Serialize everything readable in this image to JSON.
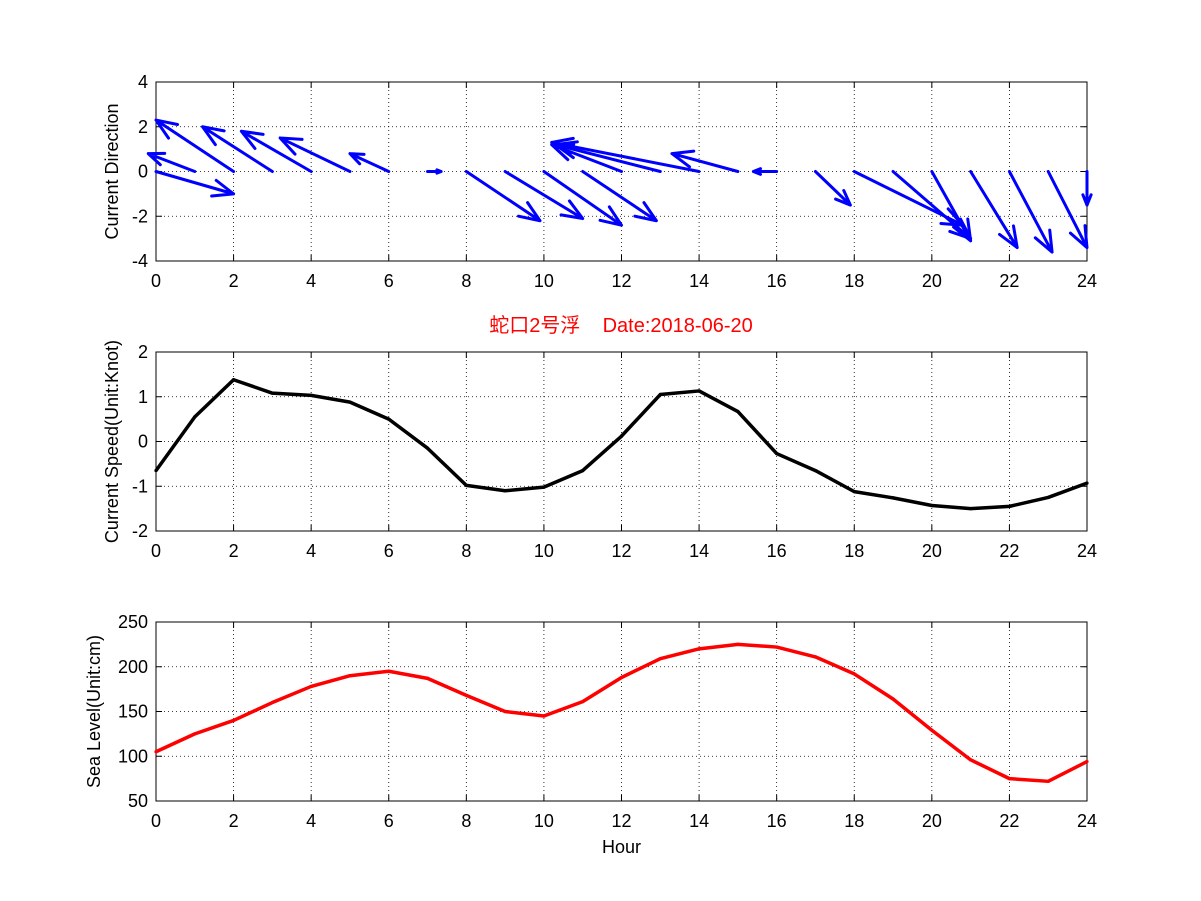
{
  "chart_data": [
    {
      "type": "quiver",
      "ylabel": "Current Direction",
      "xlabel": "",
      "xlim": [
        0,
        24
      ],
      "ylim": [
        -4,
        4
      ],
      "xticks": [
        0,
        2,
        4,
        6,
        8,
        10,
        12,
        14,
        16,
        18,
        20,
        22,
        24
      ],
      "yticks": [
        -4,
        -2,
        0,
        2,
        4
      ],
      "grid": true,
      "color": "#0000ff",
      "arrows": [
        {
          "x": 0,
          "u": 2.0,
          "v": -1.0
        },
        {
          "x": 1,
          "u": -1.2,
          "v": 0.8
        },
        {
          "x": 2,
          "u": -2.0,
          "v": 2.3
        },
        {
          "x": 3,
          "u": -1.8,
          "v": 2.0
        },
        {
          "x": 4,
          "u": -1.8,
          "v": 1.8
        },
        {
          "x": 5,
          "u": -1.8,
          "v": 1.5
        },
        {
          "x": 6,
          "u": -1.0,
          "v": 0.8
        },
        {
          "x": 7,
          "u": 0.35,
          "v": 0.0
        },
        {
          "x": 8,
          "u": 1.9,
          "v": -2.2
        },
        {
          "x": 9,
          "u": 2.0,
          "v": -2.1
        },
        {
          "x": 10,
          "u": 2.0,
          "v": -2.4
        },
        {
          "x": 11,
          "u": 1.9,
          "v": -2.2
        },
        {
          "x": 12,
          "u": -1.8,
          "v": 1.2
        },
        {
          "x": 13,
          "u": -2.7,
          "v": 1.2
        },
        {
          "x": 14,
          "u": -3.8,
          "v": 1.3
        },
        {
          "x": 15,
          "u": -1.7,
          "v": 0.8
        },
        {
          "x": 16,
          "u": -0.6,
          "v": 0.0
        },
        {
          "x": 17,
          "u": 0.9,
          "v": -1.5
        },
        {
          "x": 18,
          "u": 2.8,
          "v": -2.4
        },
        {
          "x": 19,
          "u": 2.0,
          "v": -3.0
        },
        {
          "x": 20,
          "u": 1.0,
          "v": -3.1
        },
        {
          "x": 21,
          "u": 1.2,
          "v": -3.4
        },
        {
          "x": 22,
          "u": 1.1,
          "v": -3.6
        },
        {
          "x": 23,
          "u": 1.0,
          "v": -3.4
        },
        {
          "x": 24,
          "u": 0.0,
          "v": -1.5
        }
      ]
    },
    {
      "type": "line",
      "title": "蛇口2号浮    Date:2018-06-20",
      "ylabel": "Current Speed(Unit:Knot)",
      "xlabel": "",
      "xlim": [
        0,
        24
      ],
      "ylim": [
        -2,
        2
      ],
      "xticks": [
        0,
        2,
        4,
        6,
        8,
        10,
        12,
        14,
        16,
        18,
        20,
        22,
        24
      ],
      "yticks": [
        -2,
        -1,
        0,
        1,
        2
      ],
      "grid": true,
      "color": "#000000",
      "x": [
        0,
        1,
        2,
        3,
        4,
        5,
        6,
        7,
        8,
        9,
        10,
        11,
        12,
        13,
        14,
        15,
        16,
        17,
        18,
        19,
        20,
        21,
        22,
        23,
        24
      ],
      "y": [
        -0.65,
        0.55,
        1.38,
        1.08,
        1.03,
        0.88,
        0.5,
        -0.15,
        -0.98,
        -1.1,
        -1.02,
        -0.65,
        0.12,
        1.05,
        1.13,
        0.67,
        -0.27,
        -0.65,
        -1.12,
        -1.26,
        -1.43,
        -1.5,
        -1.45,
        -1.25,
        -0.93
      ]
    },
    {
      "type": "line",
      "ylabel": "Sea Level(Unit:cm)",
      "xlabel": "Hour",
      "xlim": [
        0,
        24
      ],
      "ylim": [
        50,
        250
      ],
      "xticks": [
        0,
        2,
        4,
        6,
        8,
        10,
        12,
        14,
        16,
        18,
        20,
        22,
        24
      ],
      "yticks": [
        50,
        100,
        150,
        200,
        250
      ],
      "grid": true,
      "color": "#ff0000",
      "x": [
        0,
        1,
        2,
        3,
        4,
        5,
        6,
        7,
        8,
        9,
        10,
        11,
        12,
        13,
        14,
        15,
        16,
        17,
        18,
        19,
        20,
        21,
        22,
        23,
        24
      ],
      "y": [
        105,
        125,
        140,
        160,
        178,
        190,
        195,
        187,
        168,
        150,
        145,
        161,
        188,
        209,
        220,
        225,
        222,
        211,
        192,
        164,
        129,
        96,
        75,
        72,
        94
      ]
    }
  ]
}
